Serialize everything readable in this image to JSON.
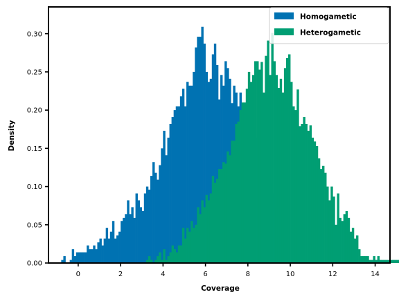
{
  "chart_data": {
    "type": "histogram",
    "xlabel": "Coverage",
    "ylabel": "Density",
    "xlim": [
      -1.4,
      14.7
    ],
    "ylim": [
      0,
      0.335
    ],
    "xticks": [
      0,
      2,
      4,
      6,
      8,
      10,
      12,
      14
    ],
    "yticks": [
      0.0,
      0.05,
      0.1,
      0.15,
      0.2,
      0.25,
      0.3
    ],
    "xtick_labels": [
      "0",
      "2",
      "4",
      "6",
      "8",
      "10",
      "12",
      "14"
    ],
    "ytick_labels": [
      "0.00",
      "0.05",
      "0.10",
      "0.15",
      "0.20",
      "0.25",
      "0.30"
    ],
    "grid": false,
    "legend_position": "top-right",
    "bin_width": 0.1,
    "series": [
      {
        "name": "Homogametic",
        "color": "#0072B2",
        "bin_start": -0.8,
        "values": [
          0.004,
          0.009,
          0,
          0,
          0.004,
          0.018,
          0.009,
          0.014,
          0.014,
          0.014,
          0.014,
          0.014,
          0.023,
          0.018,
          0.018,
          0.023,
          0.018,
          0.027,
          0.032,
          0.023,
          0.032,
          0.046,
          0.032,
          0.041,
          0.055,
          0.032,
          0.036,
          0.041,
          0.055,
          0.059,
          0.064,
          0.082,
          0.064,
          0.073,
          0.059,
          0.091,
          0.082,
          0.073,
          0.068,
          0.091,
          0.1,
          0.096,
          0.114,
          0.132,
          0.118,
          0.109,
          0.128,
          0.15,
          0.173,
          0.141,
          0.164,
          0.182,
          0.191,
          0.2,
          0.205,
          0.205,
          0.218,
          0.228,
          0.205,
          0.237,
          0.232,
          0.232,
          0.25,
          0.282,
          0.296,
          0.296,
          0.309,
          0.287,
          0.25,
          0.237,
          0.241,
          0.273,
          0.287,
          0.259,
          0.214,
          0.246,
          0.232,
          0.264,
          0.255,
          0.241,
          0.209,
          0.232,
          0.223,
          0.205,
          0.223,
          0.2,
          0.2,
          0.205,
          0.187,
          0.191,
          0.178,
          0.164,
          0.155,
          0.137,
          0.141,
          0.128,
          0.105,
          0.118,
          0.105,
          0.091,
          0.073,
          0.055,
          0.036,
          0.018
        ]
      },
      {
        "name": "Heterogametic",
        "color": "#009E73",
        "bin_start": 3.2,
        "values": [
          0.004,
          0.009,
          0.004,
          0,
          0.004,
          0.009,
          0.014,
          0.004,
          0.018,
          0.004,
          0.009,
          0.014,
          0.023,
          0.018,
          0.014,
          0.023,
          0.023,
          0.046,
          0.032,
          0.046,
          0.041,
          0.055,
          0.046,
          0.05,
          0.073,
          0.064,
          0.082,
          0.073,
          0.089,
          0.082,
          0.091,
          0.114,
          0.105,
          0.11,
          0.123,
          0.123,
          0.132,
          0.13,
          0.146,
          0.141,
          0.16,
          0.16,
          0.182,
          0.185,
          0.2,
          0.21,
          0.21,
          0.228,
          0.25,
          0.237,
          0.246,
          0.264,
          0.264,
          0.253,
          0.263,
          0.223,
          0.271,
          0.291,
          0.246,
          0.301,
          0.264,
          0.246,
          0.229,
          0.241,
          0.223,
          0.255,
          0.268,
          0.273,
          0.237,
          0.205,
          0.2,
          0.227,
          0.179,
          0.182,
          0.191,
          0.182,
          0.173,
          0.18,
          0.164,
          0.159,
          0.153,
          0.137,
          0.123,
          0.127,
          0.118,
          0.1,
          0.082,
          0.1,
          0.087,
          0.05,
          0.091,
          0.059,
          0.055,
          0.064,
          0.068,
          0.059,
          0.041,
          0.046,
          0.032,
          0.036,
          0.018,
          0.009,
          0.009,
          0.009,
          0.009,
          0.004,
          0.004,
          0.009,
          0.004,
          0.009,
          0.004,
          0.004,
          0.004,
          0.004,
          0.004,
          0.004,
          0.004,
          0.004,
          0.004,
          0.004,
          0,
          0.004,
          0,
          0,
          0,
          0,
          0,
          0,
          0,
          0,
          0,
          0,
          0,
          0,
          0,
          0,
          0,
          0,
          0,
          0,
          0,
          0,
          0,
          0,
          0,
          0,
          0,
          0,
          0,
          0.004
        ]
      }
    ]
  }
}
